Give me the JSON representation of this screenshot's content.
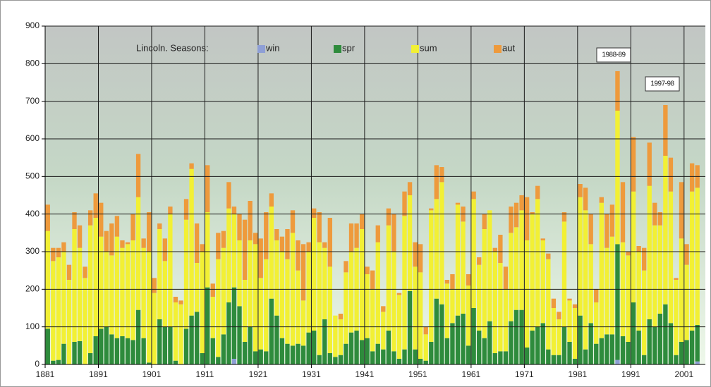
{
  "chart_data": {
    "type": "stacked-bar",
    "legend_title": "Lincoln. Seasons:",
    "annotations": [
      "1988-89",
      "1997-98"
    ],
    "x": [
      1881,
      1882,
      1883,
      1884,
      1885,
      1886,
      1887,
      1888,
      1889,
      1890,
      1891,
      1892,
      1893,
      1894,
      1895,
      1896,
      1897,
      1898,
      1899,
      1900,
      1901,
      1902,
      1903,
      1904,
      1905,
      1906,
      1907,
      1908,
      1909,
      1910,
      1911,
      1912,
      1913,
      1914,
      1915,
      1916,
      1917,
      1918,
      1919,
      1920,
      1921,
      1922,
      1923,
      1924,
      1925,
      1926,
      1927,
      1928,
      1929,
      1930,
      1931,
      1932,
      1933,
      1934,
      1935,
      1936,
      1937,
      1938,
      1939,
      1940,
      1941,
      1942,
      1943,
      1944,
      1945,
      1946,
      1947,
      1948,
      1949,
      1950,
      1951,
      1952,
      1953,
      1954,
      1955,
      1956,
      1957,
      1958,
      1959,
      1960,
      1961,
      1962,
      1963,
      1964,
      1965,
      1966,
      1967,
      1968,
      1969,
      1970,
      1971,
      1972,
      1973,
      1974,
      1975,
      1976,
      1977,
      1978,
      1979,
      1980,
      1981,
      1982,
      1983,
      1984,
      1985,
      1986,
      1987,
      1988,
      1989,
      1990,
      1991,
      1992,
      1993,
      1994,
      1995,
      1996,
      1997,
      1998,
      1999,
      2000,
      2001,
      2002,
      2003
    ],
    "xlim": [
      1881,
      2005
    ],
    "xticks": [
      1881,
      1891,
      1901,
      1911,
      1921,
      1931,
      1941,
      1951,
      1961,
      1971,
      1981,
      1991,
      2001
    ],
    "ylim": [
      0,
      900
    ],
    "yticks": [
      0,
      100,
      200,
      300,
      400,
      500,
      600,
      700,
      800,
      900
    ],
    "grid": true,
    "series": [
      {
        "name": "win",
        "color": "#8e9fd6",
        "values": [
          0,
          0,
          0,
          0,
          0,
          0,
          0,
          0,
          0,
          0,
          0,
          0,
          0,
          0,
          0,
          0,
          0,
          0,
          0,
          0,
          0,
          0,
          0,
          0,
          0,
          0,
          0,
          0,
          0,
          0,
          0,
          0,
          0,
          0,
          0,
          15,
          0,
          0,
          0,
          0,
          0,
          0,
          0,
          0,
          0,
          0,
          0,
          0,
          0,
          0,
          0,
          0,
          0,
          0,
          0,
          0,
          0,
          0,
          0,
          0,
          0,
          0,
          0,
          0,
          0,
          0,
          0,
          0,
          0,
          0,
          0,
          0,
          0,
          0,
          0,
          0,
          0,
          0,
          0,
          0,
          0,
          0,
          0,
          0,
          0,
          0,
          0,
          0,
          0,
          0,
          0,
          0,
          0,
          0,
          0,
          0,
          0,
          0,
          0,
          0,
          0,
          0,
          0,
          0,
          0,
          0,
          0,
          12,
          0,
          0,
          0,
          0,
          0,
          0,
          0,
          0,
          0,
          0,
          0,
          0,
          0,
          0,
          8
        ]
      },
      {
        "name": "spr",
        "color": "#2e8b3c",
        "values": [
          95,
          10,
          12,
          55,
          0,
          60,
          62,
          0,
          30,
          75,
          95,
          100,
          80,
          70,
          75,
          70,
          65,
          145,
          70,
          5,
          0,
          120,
          100,
          100,
          10,
          0,
          95,
          130,
          140,
          30,
          205,
          70,
          20,
          80,
          165,
          190,
          155,
          60,
          100,
          35,
          40,
          35,
          175,
          130,
          70,
          55,
          50,
          55,
          50,
          85,
          90,
          25,
          120,
          30,
          20,
          25,
          55,
          85,
          90,
          65,
          70,
          35,
          55,
          40,
          90,
          35,
          15,
          40,
          195,
          40,
          15,
          10,
          60,
          175,
          160,
          70,
          110,
          130,
          135,
          50,
          150,
          90,
          70,
          115,
          30,
          35,
          35,
          115,
          145,
          145,
          45,
          90,
          100,
          110,
          40,
          25,
          25,
          100,
          60,
          15,
          130,
          40,
          110,
          55,
          70,
          80,
          80,
          308,
          75,
          60,
          165,
          90,
          25,
          120,
          100,
          135,
          160,
          110,
          25,
          60,
          65,
          90,
          97
        ]
      },
      {
        "name": "sum",
        "color": "#f2f034",
        "values": [
          260,
          265,
          273,
          245,
          225,
          300,
          248,
          230,
          340,
          315,
          245,
          200,
          210,
          270,
          235,
          250,
          265,
          300,
          240,
          295,
          190,
          240,
          175,
          300,
          155,
          160,
          290,
          390,
          130,
          270,
          200,
          110,
          260,
          230,
          250,
          195,
          175,
          165,
          230,
          285,
          190,
          245,
          245,
          200,
          230,
          225,
          300,
          195,
          120,
          215,
          300,
          300,
          190,
          230,
          110,
          95,
          190,
          215,
          220,
          295,
          170,
          165,
          270,
          100,
          280,
          265,
          170,
          355,
          255,
          220,
          230,
          70,
          350,
          265,
          325,
          145,
          90,
          295,
          245,
          160,
          290,
          175,
          290,
          295,
          270,
          235,
          165,
          235,
          220,
          265,
          285,
          310,
          340,
          220,
          240,
          125,
          95,
          280,
          110,
          135,
          315,
          370,
          210,
          110,
          360,
          230,
          260,
          355,
          250,
          230,
          295,
          210,
          225,
          355,
          270,
          235,
          395,
          350,
          200,
          275,
          200,
          370,
          365
        ]
      },
      {
        "name": "aut",
        "color": "#ee9a3c",
        "values": [
          70,
          35,
          25,
          25,
          40,
          45,
          60,
          30,
          40,
          65,
          90,
          55,
          85,
          55,
          20,
          5,
          70,
          115,
          25,
          105,
          40,
          15,
          60,
          20,
          15,
          10,
          55,
          15,
          105,
          20,
          125,
          35,
          70,
          45,
          70,
          20,
          70,
          160,
          105,
          30,
          105,
          125,
          35,
          30,
          40,
          80,
          60,
          80,
          150,
          25,
          25,
          80,
          15,
          130,
          0,
          15,
          30,
          75,
          65,
          40,
          20,
          50,
          45,
          15,
          45,
          100,
          5,
          65,
          35,
          65,
          75,
          20,
          5,
          90,
          40,
          10,
          40,
          5,
          40,
          30,
          20,
          20,
          40,
          0,
          10,
          75,
          60,
          70,
          65,
          40,
          115,
          5,
          35,
          5,
          15,
          25,
          20,
          25,
          5,
          10,
          35,
          60,
          80,
          35,
          15,
          90,
          85,
          105,
          160,
          10,
          145,
          15,
          60,
          115,
          60,
          35,
          135,
          90,
          5,
          150,
          55,
          75,
          60
        ]
      }
    ]
  }
}
